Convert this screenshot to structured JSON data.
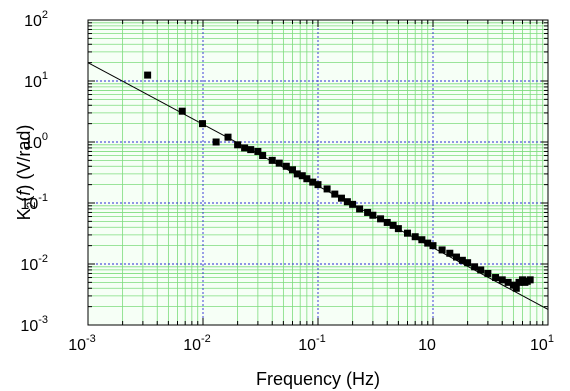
{
  "chart_data": {
    "type": "scatter",
    "title": "",
    "xlabel": "Frequency (Hz)",
    "ylabel": "K2(f) (V/rad)",
    "ylabel_parts": {
      "main": "K",
      "sub": "2",
      "paren_open": "(",
      "italic": "f",
      "rest": ") (V/rad)"
    },
    "xscale": "log",
    "yscale": "log",
    "xlim": [
      0.001,
      10
    ],
    "ylim": [
      0.001,
      100
    ],
    "grid": true,
    "legend": "none",
    "x_ticks": [
      {
        "base": "10",
        "exp": "-3",
        "value": 0.001
      },
      {
        "base": "10",
        "exp": "-2",
        "value": 0.01
      },
      {
        "base": "10",
        "exp": "-1",
        "value": 0.1
      },
      {
        "base": "10",
        "exp": "",
        "value": 1,
        "label": "10",
        "note": "rendered as 10^0"
      },
      {
        "base": "10",
        "exp": "1",
        "value": 10
      }
    ],
    "y_ticks": [
      {
        "base": "10",
        "exp": "-3",
        "value": 0.001
      },
      {
        "base": "10",
        "exp": "-2",
        "value": 0.01
      },
      {
        "base": "10",
        "exp": "-1",
        "value": 0.1
      },
      {
        "base": "10",
        "exp": "0",
        "value": 1
      },
      {
        "base": "10",
        "exp": "1",
        "value": 10
      },
      {
        "base": "10",
        "exp": "2",
        "value": 100
      }
    ],
    "series": [
      {
        "style": "square-markers",
        "x": [
          0.0033,
          0.0066,
          0.0099,
          0.013,
          0.0165,
          0.02,
          0.023,
          0.026,
          0.03,
          0.033,
          0.04,
          0.046,
          0.053,
          0.06,
          0.066,
          0.073,
          0.08,
          0.09,
          0.1,
          0.12,
          0.14,
          0.16,
          0.18,
          0.2,
          0.23,
          0.27,
          0.3,
          0.35,
          0.4,
          0.45,
          0.5,
          0.6,
          0.7,
          0.8,
          0.9,
          1.0,
          1.2,
          1.4,
          1.6,
          1.8,
          2.0,
          2.3,
          2.6,
          3.0,
          3.5,
          4.0,
          4.5,
          5.0,
          5.3,
          5.6,
          6.0,
          6.3,
          6.6,
          7.0
        ],
        "y": [
          12.5,
          3.2,
          2.0,
          1.0,
          1.2,
          0.9,
          0.8,
          0.75,
          0.7,
          0.6,
          0.5,
          0.45,
          0.4,
          0.35,
          0.3,
          0.28,
          0.25,
          0.22,
          0.2,
          0.17,
          0.14,
          0.12,
          0.105,
          0.095,
          0.08,
          0.07,
          0.063,
          0.055,
          0.048,
          0.043,
          0.038,
          0.032,
          0.028,
          0.025,
          0.022,
          0.02,
          0.017,
          0.015,
          0.013,
          0.0115,
          0.0105,
          0.009,
          0.008,
          0.007,
          0.006,
          0.0055,
          0.005,
          0.0045,
          0.004,
          0.005,
          0.0055,
          0.005,
          0.0052,
          0.0055
        ]
      },
      {
        "style": "fit-line",
        "x": [
          0.001,
          10
        ],
        "y": [
          20,
          0.0018
        ]
      }
    ],
    "colors": {
      "markers": "#000000",
      "fit_line": "#000000",
      "major_grid": "#2b2bd4",
      "minor_grid": "#7ddc7d",
      "background": "#f6fff6"
    }
  }
}
